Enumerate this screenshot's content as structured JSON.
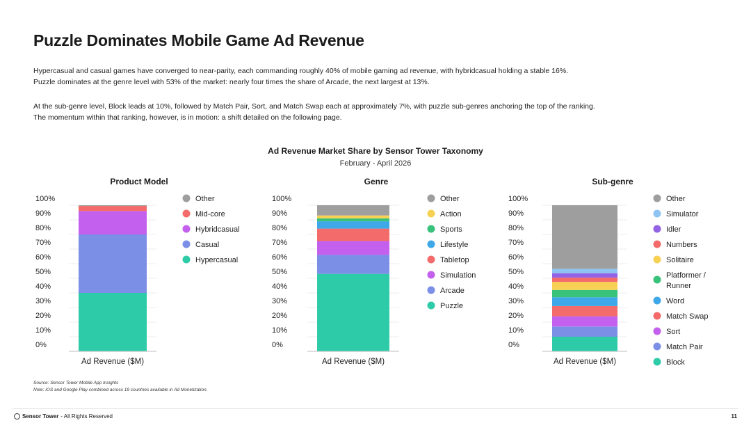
{
  "page": {
    "title": "Puzzle Dominates Mobile Game Ad Revenue",
    "paragraph1": [
      "Hypercasual and casual games have converged to near-parity, each commanding roughly 40% of mobile gaming ad revenue, with hybridcasual holding a stable 16%.",
      "Puzzle dominates at the genre level with 53% of the market: nearly four times the share of Arcade, the next largest at 13%."
    ],
    "paragraph2": [
      "At the sub-genre level, Block leads at 10%, followed by Match Pair, Sort, and Match Swap each at approximately 7%, with puzzle sub-genres anchoring the top of the ranking.",
      "The momentum within that ranking, however, is in motion: a shift detailed on the following page."
    ],
    "chart_title": "Ad Revenue Market Share by Sensor Tower Taxonomy",
    "chart_subtitle": "February - April 2026",
    "footnote": [
      "Source: Sensor Tower Mobile App Insights",
      "Note: iOS and Google Play combined across 19 countries available in Ad Monetization."
    ],
    "footer": {
      "brand": "Sensor Tower",
      "rights": "- All Rights Reserved",
      "page_number": "11"
    },
    "colors": {
      "Other": "#9e9e9e",
      "Mid-core": "#f46b6b",
      "Hybridcasual": "#c460ee",
      "Casual": "#7b8fe6",
      "Hypercasual": "#2ecba8",
      "Action": "#f7d154",
      "Sports": "#38c27a",
      "Lifestyle": "#3ea8e8",
      "Tabletop": "#f36b6b",
      "Simulation": "#c460ee",
      "Arcade": "#7b8fe6",
      "Puzzle": "#2ecba8",
      "Simulator": "#8fc4f2",
      "Idler": "#9363e6",
      "Numbers": "#f36b6b",
      "Solitaire": "#f7d154",
      "Platformer / Runner": "#38c27a",
      "Word": "#3ea8e8",
      "Match Swap": "#f46b6b",
      "Sort": "#c460ee",
      "Match Pair": "#7b8fe6",
      "Block": "#2ecba8"
    }
  },
  "chart_data": [
    {
      "type": "bar",
      "stacked": true,
      "title": "Product Model",
      "categories": [
        "Ad Revenue ($M)"
      ],
      "y_ticks": [
        "100%",
        "90%",
        "80%",
        "70%",
        "60%",
        "50%",
        "40%",
        "30%",
        "20%",
        "10%",
        "0%"
      ],
      "ylim": [
        0,
        100
      ],
      "series": [
        {
          "name": "Hypercasual",
          "values": [
            40
          ]
        },
        {
          "name": "Casual",
          "values": [
            40
          ]
        },
        {
          "name": "Hybridcasual",
          "values": [
            16
          ]
        },
        {
          "name": "Mid-core",
          "values": [
            3.5
          ]
        },
        {
          "name": "Other",
          "values": [
            0.5
          ]
        }
      ],
      "legend": [
        "Other",
        "Mid-core",
        "Hybridcasual",
        "Casual",
        "Hypercasual"
      ]
    },
    {
      "type": "bar",
      "stacked": true,
      "title": "Genre",
      "categories": [
        "Ad Revenue ($M)"
      ],
      "y_ticks": [
        "100%",
        "90%",
        "80%",
        "70%",
        "60%",
        "50%",
        "40%",
        "30%",
        "20%",
        "10%",
        "0%"
      ],
      "ylim": [
        0,
        100
      ],
      "series": [
        {
          "name": "Puzzle",
          "values": [
            53
          ]
        },
        {
          "name": "Arcade",
          "values": [
            13
          ]
        },
        {
          "name": "Simulation",
          "values": [
            9.5
          ]
        },
        {
          "name": "Tabletop",
          "values": [
            8.5
          ]
        },
        {
          "name": "Lifestyle",
          "values": [
            5
          ]
        },
        {
          "name": "Sports",
          "values": [
            2
          ]
        },
        {
          "name": "Action",
          "values": [
            2
          ]
        },
        {
          "name": "Other",
          "values": [
            7
          ]
        }
      ],
      "legend": [
        "Other",
        "Action",
        "Sports",
        "Lifestyle",
        "Tabletop",
        "Simulation",
        "Arcade",
        "Puzzle"
      ]
    },
    {
      "type": "bar",
      "stacked": true,
      "title": "Sub-genre",
      "categories": [
        "Ad Revenue ($M)"
      ],
      "y_ticks": [
        "100%",
        "90%",
        "80%",
        "70%",
        "60%",
        "50%",
        "40%",
        "30%",
        "20%",
        "10%",
        "0%"
      ],
      "ylim": [
        0,
        100
      ],
      "series": [
        {
          "name": "Block",
          "values": [
            10
          ]
        },
        {
          "name": "Match Pair",
          "values": [
            7
          ]
        },
        {
          "name": "Sort",
          "values": [
            7
          ]
        },
        {
          "name": "Match Swap",
          "values": [
            7
          ]
        },
        {
          "name": "Word",
          "values": [
            6
          ]
        },
        {
          "name": "Platformer / Runner",
          "values": [
            5
          ]
        },
        {
          "name": "Solitaire",
          "values": [
            5.5
          ]
        },
        {
          "name": "Numbers",
          "values": [
            3
          ]
        },
        {
          "name": "Idler",
          "values": [
            3
          ]
        },
        {
          "name": "Simulator",
          "values": [
            3
          ]
        },
        {
          "name": "Other",
          "values": [
            43.5
          ]
        }
      ],
      "legend": [
        "Other",
        "Simulator",
        "Idler",
        "Numbers",
        "Solitaire",
        "Platformer / Runner",
        "Word",
        "Match Swap",
        "Sort",
        "Match Pair",
        "Block"
      ]
    }
  ]
}
